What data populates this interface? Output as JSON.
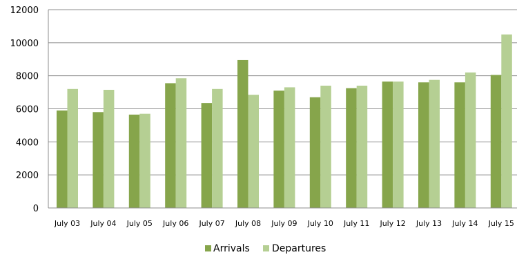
{
  "chart_data": {
    "type": "bar",
    "title": "",
    "xlabel": "",
    "ylabel": "",
    "ylim": [
      0,
      12000
    ],
    "yticks": [
      0,
      2000,
      4000,
      6000,
      8000,
      10000,
      12000
    ],
    "grid": true,
    "legend_position": "bottom",
    "categories": [
      "July 03",
      "July 04",
      "July 05",
      "July 06",
      "July 07",
      "July 08",
      "July 09",
      "July 10",
      "July 11",
      "July 12",
      "July 13",
      "July 14",
      "July 15"
    ],
    "series": [
      {
        "name": "Arrivals",
        "color": "#86a54b",
        "values": [
          5900,
          5800,
          5650,
          7550,
          6350,
          8950,
          7100,
          6700,
          7250,
          7650,
          7600,
          7600,
          8050
        ]
      },
      {
        "name": "Departures",
        "color": "#b5cf93",
        "values": [
          7200,
          7150,
          5700,
          7850,
          7200,
          6850,
          7300,
          7400,
          7400,
          7650,
          7750,
          8200,
          10500
        ]
      }
    ]
  }
}
